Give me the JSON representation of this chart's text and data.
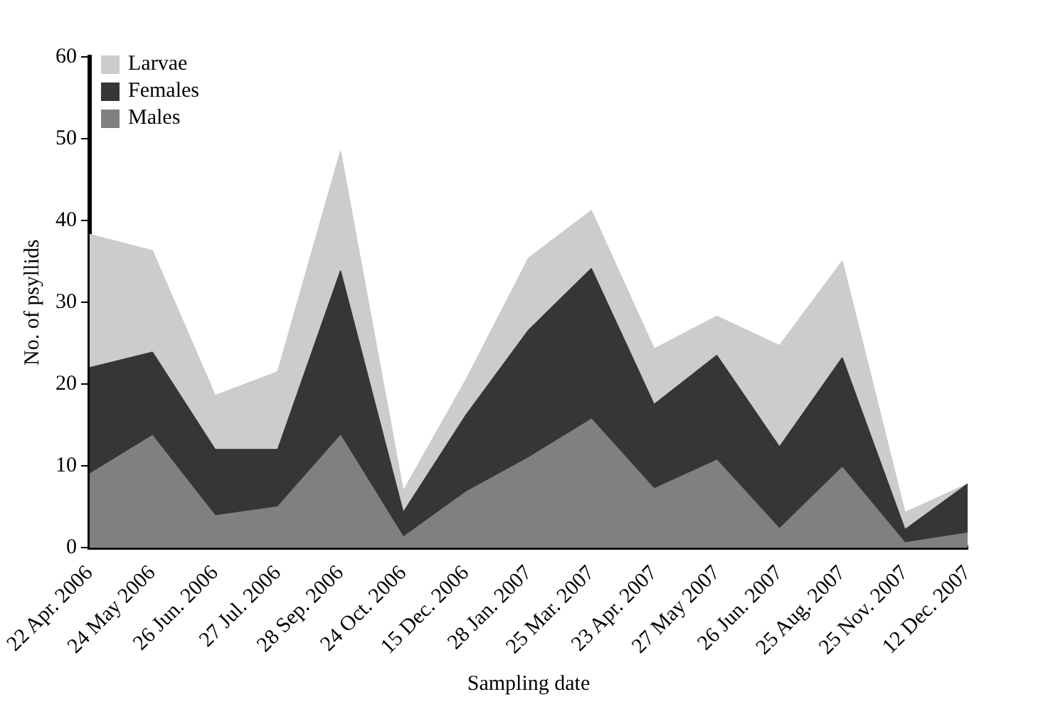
{
  "chart_data": {
    "type": "area",
    "stacked": true,
    "xlabel": "Sampling date",
    "ylabel": "No. of psyllids",
    "categories": [
      "22 Apr. 2006",
      "24 May 2006",
      "26 Jun. 2006",
      "27 Jul. 2006",
      "28 Sep. 2006",
      "24 Oct. 2006",
      "15 Dec. 2006",
      "28 Jan. 2007",
      "25 Mar. 2007",
      "23 Apr. 2007",
      "27 May 2007",
      "26 Jun. 2007",
      "25 Aug. 2007",
      "25 Nov. 2007",
      "12 Dec. 2007"
    ],
    "series": [
      {
        "name": "Males",
        "color": "#808080",
        "values": [
          9.0,
          13.7,
          3.9,
          5.0,
          13.7,
          1.3,
          6.8,
          11.0,
          15.7,
          7.2,
          10.7,
          2.3,
          9.8,
          0.6,
          1.8
        ]
      },
      {
        "name": "Females",
        "color": "#363636",
        "values": [
          13.0,
          10.2,
          8.1,
          7.0,
          20.1,
          3.0,
          9.4,
          15.6,
          18.4,
          10.3,
          12.8,
          10.0,
          13.4,
          1.6,
          6.0
        ]
      },
      {
        "name": "Larvae",
        "color": "#cccccc",
        "values": [
          16.3,
          12.4,
          6.6,
          9.5,
          14.6,
          2.6,
          4.3,
          8.8,
          7.1,
          6.8,
          4.8,
          12.4,
          11.8,
          2.1,
          0
        ]
      }
    ],
    "ylim": [
      0,
      60
    ],
    "yticks": [
      0,
      10,
      20,
      30,
      40,
      50,
      60
    ],
    "grid": false,
    "legend": "top left"
  }
}
